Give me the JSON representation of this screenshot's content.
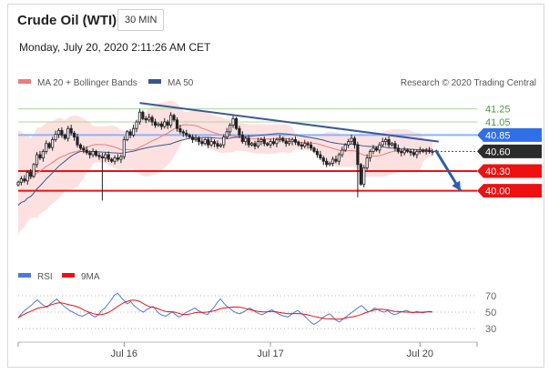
{
  "header": {
    "title": "Crude Oil (WTI)",
    "interval": "30 MIN",
    "timestamp": "Monday, July 20, 2020 2:11:26 AM CET"
  },
  "legend": {
    "items": [
      {
        "label": "MA 20 + Bollinger Bands",
        "color": "#f07b7b"
      },
      {
        "label": "MA 50",
        "color": "#34578f"
      }
    ],
    "credit": "Research © 2020 Trading Central"
  },
  "price_levels": [
    {
      "value": 41.25,
      "label": "41.25",
      "style": "thin-green"
    },
    {
      "value": 41.05,
      "label": "41.05",
      "style": "thin-green"
    },
    {
      "value": 40.85,
      "label": "40.85",
      "style": "blue-tag",
      "color": "#2f6fe8"
    },
    {
      "value": 40.6,
      "label": "40.60",
      "style": "dark-tag",
      "color": "#2b2b2b"
    },
    {
      "value": 40.3,
      "label": "40.30",
      "style": "red-tag",
      "color": "#ee1111"
    },
    {
      "value": 40.0,
      "label": "40.00",
      "style": "red-tag",
      "color": "#ee1111"
    }
  ],
  "rsi_legend": {
    "items": [
      {
        "label": "RSI",
        "color": "#4f79d8"
      },
      {
        "label": "9MA",
        "color": "#ee1111"
      }
    ]
  },
  "rsi_levels": [
    "70",
    "50",
    "30"
  ],
  "x_axis": {
    "ticks": [
      {
        "label": "Jul 16",
        "bar": 34
      },
      {
        "label": "Jul 17",
        "bar": 81
      },
      {
        "label": "Jul 20",
        "bar": 129
      }
    ]
  },
  "chart_data": [
    {
      "type": "candlestick",
      "title": "Crude Oil (WTI)",
      "ylim": [
        39.55,
        41.55
      ],
      "series": [
        {
          "name": "MA 20 + Bollinger Bands",
          "color": "#f07b7b"
        },
        {
          "name": "MA 50",
          "color": "#34578f"
        }
      ],
      "resistance_trendline": {
        "from": [
          39,
          41.34
        ],
        "to": [
          135,
          40.75
        ]
      },
      "projection": {
        "from": [
          134,
          40.62
        ],
        "to": [
          142,
          40.0
        ],
        "color": "#2d5fa8"
      },
      "ohlc_close": [
        40.13,
        40.18,
        40.15,
        40.28,
        40.22,
        40.4,
        40.55,
        40.5,
        40.6,
        40.72,
        40.66,
        40.78,
        40.86,
        40.92,
        40.85,
        40.8,
        40.95,
        40.88,
        40.82,
        40.7,
        40.65,
        40.62,
        40.58,
        40.55,
        40.6,
        40.54,
        40.52,
        40.5,
        40.55,
        40.48,
        40.45,
        40.5,
        40.48,
        40.52,
        40.78,
        40.9,
        40.85,
        40.95,
        41.05,
        41.2,
        41.1,
        41.08,
        41.12,
        41.05,
        41.0,
        41.02,
        40.98,
        41.05,
        41.0,
        41.15,
        41.08,
        40.95,
        40.9,
        40.88,
        40.85,
        40.82,
        40.78,
        40.8,
        40.75,
        40.72,
        40.78,
        40.7,
        40.75,
        40.72,
        40.68,
        40.7,
        40.82,
        40.9,
        41.0,
        41.1,
        40.95,
        40.85,
        40.75,
        40.8,
        40.7,
        40.72,
        40.68,
        40.75,
        40.78,
        40.72,
        40.7,
        40.75,
        40.72,
        40.78,
        40.8,
        40.76,
        40.72,
        40.75,
        40.78,
        40.74,
        40.7,
        40.68,
        40.72,
        40.7,
        40.65,
        40.6,
        40.55,
        40.5,
        40.45,
        40.4,
        40.42,
        40.48,
        40.45,
        40.55,
        40.62,
        40.7,
        40.75,
        40.8,
        40.7,
        40.4,
        40.1,
        40.35,
        40.5,
        40.6,
        40.65,
        40.62,
        40.7,
        40.75,
        40.78,
        40.7,
        40.72,
        40.65,
        40.6,
        40.58,
        40.62,
        40.6,
        40.58,
        40.55,
        40.6,
        40.62,
        40.6,
        40.61,
        40.6,
        40.6
      ],
      "volatility_spikes": [
        {
          "bar": 27,
          "low": 39.85
        },
        {
          "bar": 109,
          "low": 39.9
        }
      ]
    },
    {
      "type": "line",
      "title": "RSI",
      "ylim": [
        20,
        80
      ],
      "series": [
        {
          "name": "RSI",
          "color": "#4f79d8"
        },
        {
          "name": "9MA",
          "color": "#ee1111"
        }
      ],
      "values": [
        43,
        48,
        52,
        55,
        58,
        62,
        65,
        61,
        58,
        56,
        60,
        63,
        66,
        62,
        58,
        55,
        52,
        50,
        48,
        46,
        45,
        47,
        49,
        46,
        44,
        47,
        52,
        55,
        60,
        65,
        71,
        73,
        68,
        64,
        60,
        63,
        58,
        55,
        52,
        50,
        53,
        55,
        57,
        52,
        48,
        46,
        45,
        48,
        50,
        47,
        44,
        46,
        49,
        51,
        53,
        55,
        52,
        50,
        48,
        47,
        52,
        56,
        62,
        66,
        61,
        57,
        54,
        51,
        49,
        48,
        50,
        52,
        55,
        53,
        50,
        48,
        47,
        49,
        51,
        53,
        50,
        48,
        46,
        45,
        44,
        47,
        50,
        52,
        49,
        46,
        42,
        38,
        35,
        37,
        40,
        44,
        46,
        48,
        44,
        40,
        38,
        41,
        44,
        47,
        50,
        53,
        56,
        58,
        54,
        50,
        52,
        55,
        53,
        51,
        50,
        52,
        49,
        47,
        48,
        50,
        51,
        52,
        50,
        49,
        51,
        50,
        49,
        50,
        51,
        50
      ]
    }
  ]
}
